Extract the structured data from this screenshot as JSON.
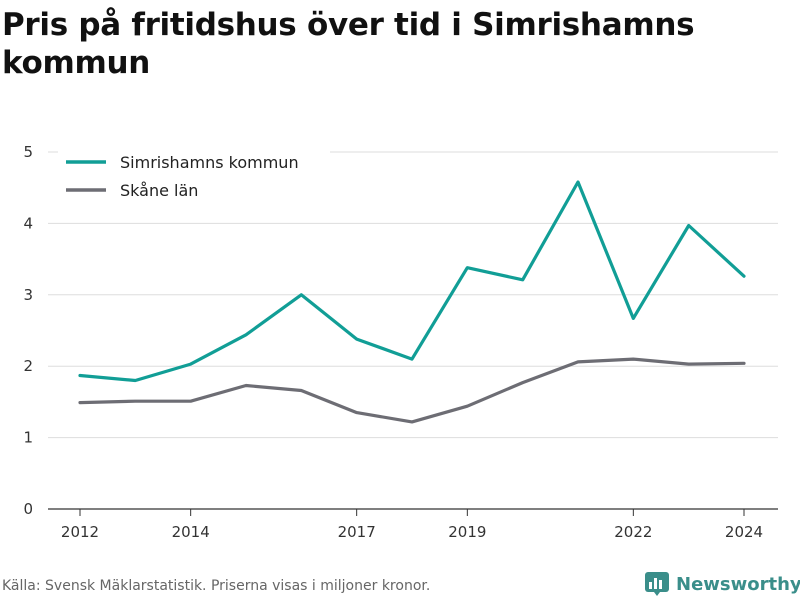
{
  "title": "Pris på fritidshus över tid i Simrishamns kommun",
  "source_text": "Källa: Svensk Mäklarstatistik. Priserna visas i miljoner kronor.",
  "brand": {
    "name": "Newsworthy",
    "icon": "bar-chart-logo-icon",
    "color": "#3a8e8a"
  },
  "chart_data": {
    "type": "line",
    "title": "Pris på fritidshus över tid i Simrishamns kommun",
    "xlabel": "",
    "ylabel": "",
    "x": [
      2012,
      2013,
      2014,
      2015,
      2016,
      2017,
      2018,
      2019,
      2020,
      2021,
      2022,
      2023,
      2024
    ],
    "xlim": [
      2012,
      2024
    ],
    "ylim": [
      0,
      5
    ],
    "x_ticks": [
      2012,
      2014,
      2017,
      2019,
      2022,
      2024
    ],
    "x_tick_labels": [
      "2012",
      "2014",
      "2017",
      "2019",
      "2022",
      "2024"
    ],
    "y_ticks": [
      0,
      1,
      2,
      3,
      4,
      5
    ],
    "y_tick_labels": [
      "0",
      "1",
      "2",
      "3",
      "4",
      "5"
    ],
    "grid": true,
    "legend_position": "top-left",
    "series": [
      {
        "name": "Simrishamns kommun",
        "color": "#119e96",
        "values": [
          1.87,
          1.8,
          2.03,
          2.44,
          3.0,
          2.38,
          2.1,
          3.38,
          3.21,
          4.58,
          2.67,
          3.97,
          3.26
        ]
      },
      {
        "name": "Skåne län",
        "color": "#6d6d74",
        "values": [
          1.49,
          1.51,
          1.51,
          1.73,
          1.66,
          1.35,
          1.22,
          1.44,
          1.77,
          2.06,
          2.1,
          2.03,
          2.04
        ]
      }
    ]
  }
}
